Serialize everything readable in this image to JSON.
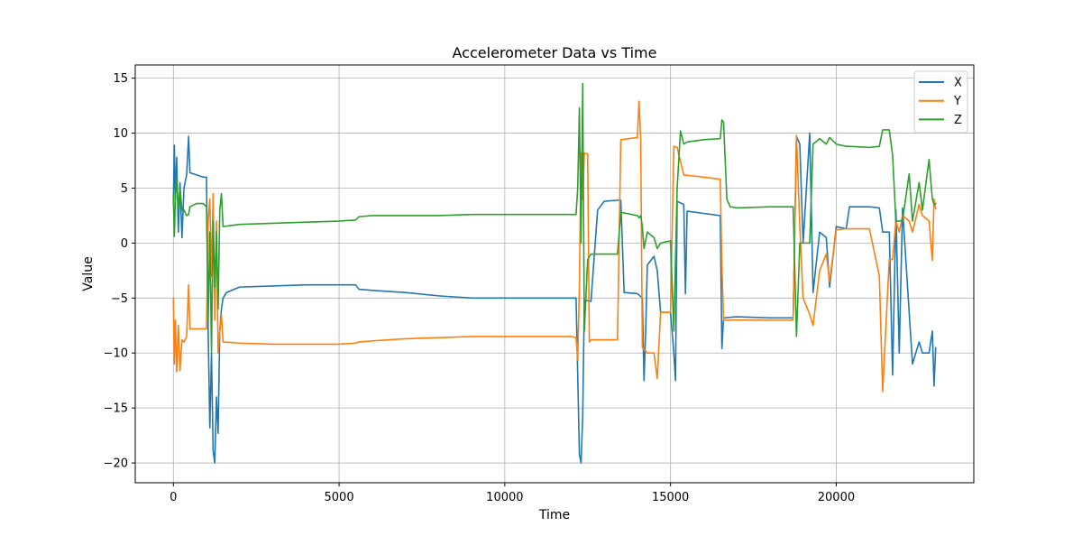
{
  "chart_data": {
    "type": "line",
    "title": "Accelerometer Data vs Time",
    "xlabel": "Time",
    "ylabel": "Value",
    "xlim": [
      -1150,
      24150
    ],
    "ylim": [
      -21.8,
      16.2
    ],
    "xticks": [
      0,
      5000,
      10000,
      15000,
      20000
    ],
    "yticks": [
      -20,
      -15,
      -10,
      -5,
      0,
      5,
      10,
      15
    ],
    "grid": true,
    "legend_position": "top-right",
    "series": [
      {
        "name": "X",
        "color": "#1f77b4",
        "points": [
          [
            0,
            3.5
          ],
          [
            30,
            8.9
          ],
          [
            60,
            4.0
          ],
          [
            100,
            7.8
          ],
          [
            150,
            1.0
          ],
          [
            200,
            5.5
          ],
          [
            260,
            0.5
          ],
          [
            320,
            5.0
          ],
          [
            400,
            6.2
          ],
          [
            460,
            9.7
          ],
          [
            500,
            6.4
          ],
          [
            700,
            6.2
          ],
          [
            900,
            6.0
          ],
          [
            1000,
            6.0
          ],
          [
            1050,
            -8.0
          ],
          [
            1100,
            -16.8
          ],
          [
            1150,
            -10.0
          ],
          [
            1200,
            -18.9
          ],
          [
            1250,
            -20.0
          ],
          [
            1300,
            -14.0
          ],
          [
            1350,
            -17.3
          ],
          [
            1400,
            -8.0
          ],
          [
            1450,
            -6.0
          ],
          [
            1500,
            -5.0
          ],
          [
            1600,
            -4.5
          ],
          [
            2000,
            -4.0
          ],
          [
            3000,
            -3.9
          ],
          [
            4000,
            -3.8
          ],
          [
            5000,
            -3.8
          ],
          [
            5500,
            -3.8
          ],
          [
            5600,
            -4.2
          ],
          [
            6000,
            -4.3
          ],
          [
            7000,
            -4.5
          ],
          [
            8000,
            -4.8
          ],
          [
            9000,
            -5.0
          ],
          [
            10000,
            -5.0
          ],
          [
            11000,
            -5.0
          ],
          [
            12000,
            -5.0
          ],
          [
            12150,
            -5.0
          ],
          [
            12200,
            -12.0
          ],
          [
            12250,
            -19.2
          ],
          [
            12300,
            -20.0
          ],
          [
            12350,
            -15.8
          ],
          [
            12400,
            -5.2
          ],
          [
            12600,
            -5.3
          ],
          [
            12800,
            3.0
          ],
          [
            13000,
            3.8
          ],
          [
            13400,
            3.9
          ],
          [
            13500,
            3.9
          ],
          [
            13600,
            -4.5
          ],
          [
            14000,
            -4.6
          ],
          [
            14150,
            -5.0
          ],
          [
            14200,
            -12.5
          ],
          [
            14250,
            -8.0
          ],
          [
            14300,
            -2.0
          ],
          [
            14500,
            -1.2
          ],
          [
            14600,
            -2.5
          ],
          [
            14700,
            -6.3
          ],
          [
            15000,
            -6.3
          ],
          [
            15100,
            -10.0
          ],
          [
            15150,
            -12.5
          ],
          [
            15200,
            3.8
          ],
          [
            15400,
            3.5
          ],
          [
            15450,
            -4.6
          ],
          [
            15500,
            2.9
          ],
          [
            16000,
            2.7
          ],
          [
            16500,
            2.5
          ],
          [
            16550,
            -9.6
          ],
          [
            16600,
            -6.8
          ],
          [
            17000,
            -6.7
          ],
          [
            18000,
            -6.8
          ],
          [
            18700,
            -6.8
          ],
          [
            18800,
            9.7
          ],
          [
            18900,
            9.0
          ],
          [
            19000,
            0.0
          ],
          [
            19200,
            10.0
          ],
          [
            19300,
            -4.5
          ],
          [
            19500,
            1.0
          ],
          [
            19700,
            0.5
          ],
          [
            19800,
            -4.0
          ],
          [
            20000,
            1.5
          ],
          [
            20300,
            1.3
          ],
          [
            20400,
            3.3
          ],
          [
            21000,
            3.3
          ],
          [
            21300,
            3.2
          ],
          [
            21400,
            1.0
          ],
          [
            21600,
            1.0
          ],
          [
            21700,
            -12.0
          ],
          [
            21800,
            3.0
          ],
          [
            21900,
            -10.0
          ],
          [
            22000,
            3.2
          ],
          [
            22200,
            -6.3
          ],
          [
            22300,
            -11.0
          ],
          [
            22500,
            -9.0
          ],
          [
            22600,
            -10.0
          ],
          [
            22800,
            -10.0
          ],
          [
            22900,
            -8.0
          ],
          [
            22950,
            -13.0
          ],
          [
            23000,
            -9.5
          ]
        ]
      },
      {
        "name": "Y",
        "color": "#ff7f0e",
        "points": [
          [
            0,
            -5.0
          ],
          [
            30,
            -11.0
          ],
          [
            60,
            -7.0
          ],
          [
            100,
            -11.7
          ],
          [
            150,
            -7.5
          ],
          [
            200,
            -11.6
          ],
          [
            260,
            -8.8
          ],
          [
            320,
            -9.0
          ],
          [
            400,
            -8.5
          ],
          [
            460,
            -3.8
          ],
          [
            500,
            -7.8
          ],
          [
            700,
            -7.8
          ],
          [
            900,
            -7.8
          ],
          [
            1000,
            -7.8
          ],
          [
            1050,
            2.0
          ],
          [
            1100,
            4.0
          ],
          [
            1150,
            -3.0
          ],
          [
            1200,
            4.5
          ],
          [
            1250,
            -7.0
          ],
          [
            1300,
            2.0
          ],
          [
            1350,
            -10.0
          ],
          [
            1400,
            -8.0
          ],
          [
            1450,
            -6.5
          ],
          [
            1500,
            -9.0
          ],
          [
            2000,
            -9.1
          ],
          [
            3000,
            -9.2
          ],
          [
            4000,
            -9.2
          ],
          [
            5000,
            -9.2
          ],
          [
            5500,
            -9.1
          ],
          [
            5600,
            -9.0
          ],
          [
            6000,
            -8.9
          ],
          [
            7000,
            -8.7
          ],
          [
            8000,
            -8.6
          ],
          [
            9000,
            -8.5
          ],
          [
            10000,
            -8.5
          ],
          [
            11000,
            -8.5
          ],
          [
            12000,
            -8.5
          ],
          [
            12150,
            -8.6
          ],
          [
            12200,
            -10.6
          ],
          [
            12250,
            -4.0
          ],
          [
            12300,
            8.2
          ],
          [
            12350,
            4.0
          ],
          [
            12400,
            8.2
          ],
          [
            12500,
            8.1
          ],
          [
            12550,
            -9.0
          ],
          [
            12600,
            -8.8
          ],
          [
            13000,
            -8.8
          ],
          [
            13400,
            -8.8
          ],
          [
            13500,
            9.4
          ],
          [
            14000,
            9.6
          ],
          [
            14050,
            12.9
          ],
          [
            14100,
            9.5
          ],
          [
            14150,
            -9.5
          ],
          [
            14300,
            -10.0
          ],
          [
            14500,
            -10.0
          ],
          [
            14600,
            -12.3
          ],
          [
            14700,
            -6.3
          ],
          [
            15000,
            -6.3
          ],
          [
            15100,
            8.8
          ],
          [
            15200,
            8.7
          ],
          [
            15400,
            6.2
          ],
          [
            16000,
            6.0
          ],
          [
            16500,
            5.8
          ],
          [
            16550,
            -2.0
          ],
          [
            16600,
            -7.0
          ],
          [
            17000,
            -7.0
          ],
          [
            18000,
            -7.0
          ],
          [
            18700,
            -7.0
          ],
          [
            18800,
            9.8
          ],
          [
            18900,
            1.5
          ],
          [
            19000,
            -5.0
          ],
          [
            19200,
            -6.5
          ],
          [
            19300,
            -7.5
          ],
          [
            19500,
            -2.5
          ],
          [
            19700,
            -1.0
          ],
          [
            19800,
            -3.5
          ],
          [
            20000,
            1.2
          ],
          [
            20300,
            1.3
          ],
          [
            20400,
            1.3
          ],
          [
            21000,
            1.3
          ],
          [
            21300,
            -3.0
          ],
          [
            21400,
            -13.5
          ],
          [
            21600,
            -1.5
          ],
          [
            21700,
            -1.5
          ],
          [
            21800,
            2.0
          ],
          [
            21900,
            1.0
          ],
          [
            22000,
            2.5
          ],
          [
            22200,
            2.0
          ],
          [
            22300,
            1.0
          ],
          [
            22500,
            3.5
          ],
          [
            22600,
            2.5
          ],
          [
            22800,
            2.0
          ],
          [
            22900,
            -1.6
          ],
          [
            22950,
            4.0
          ],
          [
            23000,
            3.1
          ]
        ]
      },
      {
        "name": "Z",
        "color": "#2ca02c",
        "points": [
          [
            0,
            4.3
          ],
          [
            30,
            0.6
          ],
          [
            60,
            4.0
          ],
          [
            100,
            6.0
          ],
          [
            150,
            3.0
          ],
          [
            200,
            5.0
          ],
          [
            260,
            3.0
          ],
          [
            320,
            3.0
          ],
          [
            400,
            2.5
          ],
          [
            460,
            2.6
          ],
          [
            500,
            3.3
          ],
          [
            700,
            3.6
          ],
          [
            900,
            3.6
          ],
          [
            1000,
            3.3
          ],
          [
            1050,
            -7.0
          ],
          [
            1100,
            1.0
          ],
          [
            1150,
            -10.0
          ],
          [
            1200,
            2.0
          ],
          [
            1250,
            -4.0
          ],
          [
            1300,
            1.0
          ],
          [
            1350,
            -6.0
          ],
          [
            1400,
            3.0
          ],
          [
            1450,
            4.5
          ],
          [
            1500,
            1.5
          ],
          [
            2000,
            1.7
          ],
          [
            3000,
            1.8
          ],
          [
            4000,
            1.9
          ],
          [
            5000,
            2.0
          ],
          [
            5500,
            2.1
          ],
          [
            5600,
            2.4
          ],
          [
            6000,
            2.5
          ],
          [
            7000,
            2.5
          ],
          [
            8000,
            2.5
          ],
          [
            9000,
            2.6
          ],
          [
            10000,
            2.6
          ],
          [
            11000,
            2.6
          ],
          [
            12000,
            2.6
          ],
          [
            12150,
            2.6
          ],
          [
            12200,
            5.0
          ],
          [
            12250,
            12.3
          ],
          [
            12300,
            0.0
          ],
          [
            12350,
            14.5
          ],
          [
            12400,
            -8.0
          ],
          [
            12500,
            -1.5
          ],
          [
            12600,
            -1.0
          ],
          [
            13000,
            -1.0
          ],
          [
            13400,
            -1.0
          ],
          [
            13500,
            2.8
          ],
          [
            14000,
            2.5
          ],
          [
            14050,
            2.3
          ],
          [
            14100,
            2.5
          ],
          [
            14150,
            1.5
          ],
          [
            14200,
            -0.5
          ],
          [
            14300,
            1.0
          ],
          [
            14500,
            0.5
          ],
          [
            14600,
            -0.5
          ],
          [
            14700,
            0.0
          ],
          [
            15000,
            0.2
          ],
          [
            15100,
            -8.0
          ],
          [
            15200,
            5.0
          ],
          [
            15300,
            10.2
          ],
          [
            15400,
            9.0
          ],
          [
            15500,
            9.2
          ],
          [
            16000,
            9.4
          ],
          [
            16500,
            9.5
          ],
          [
            16550,
            11.2
          ],
          [
            16600,
            11.0
          ],
          [
            16700,
            4.0
          ],
          [
            16800,
            3.3
          ],
          [
            17000,
            3.2
          ],
          [
            18000,
            3.3
          ],
          [
            18700,
            3.3
          ],
          [
            18800,
            -8.5
          ],
          [
            18900,
            0.0
          ],
          [
            19000,
            0.0
          ],
          [
            19200,
            0.0
          ],
          [
            19300,
            9.0
          ],
          [
            19500,
            9.5
          ],
          [
            19700,
            9.0
          ],
          [
            19800,
            9.6
          ],
          [
            20000,
            9.0
          ],
          [
            20300,
            8.8
          ],
          [
            20400,
            8.8
          ],
          [
            21000,
            8.7
          ],
          [
            21300,
            8.8
          ],
          [
            21400,
            10.3
          ],
          [
            21600,
            10.3
          ],
          [
            21700,
            8.0
          ],
          [
            21800,
            2.0
          ],
          [
            21900,
            2.0
          ],
          [
            22000,
            2.1
          ],
          [
            22200,
            6.3
          ],
          [
            22300,
            2.0
          ],
          [
            22500,
            5.5
          ],
          [
            22600,
            3.0
          ],
          [
            22800,
            7.6
          ],
          [
            22900,
            4.0
          ],
          [
            22950,
            3.5
          ],
          [
            23000,
            3.6
          ]
        ]
      }
    ]
  }
}
